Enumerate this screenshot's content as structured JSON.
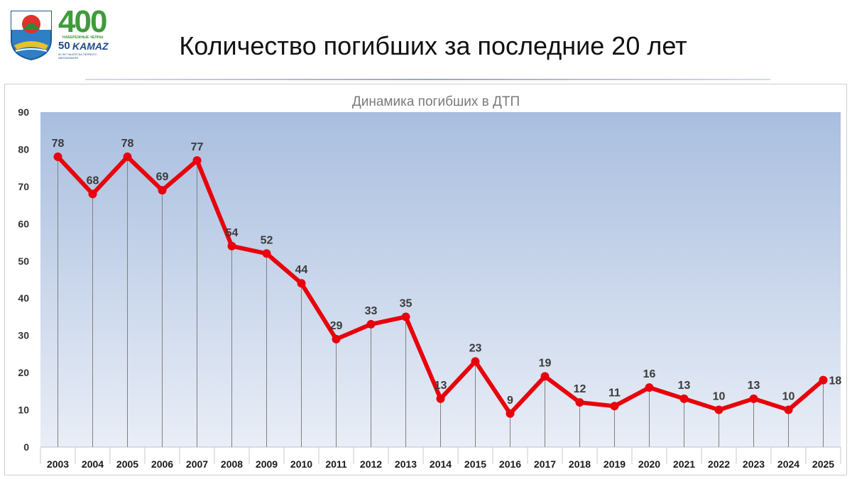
{
  "header": {
    "title": "Количество погибших за последние 20 лет",
    "logo_400": "400",
    "logo_city": "НАБЕРЕЖНЫЕ ЧЕЛНЫ",
    "logo_50": "50",
    "logo_kamaz": "KAMAZ",
    "logo_tagline": "50 ЛЕТ ВЫПУСКА ПЕРВОГО АВТОМОБИЛЯ"
  },
  "colors": {
    "line": "#e8000b",
    "plot_top": "#a9bedf",
    "plot_bottom": "#e9eef7",
    "drop_line": "#808080"
  },
  "chart_data": {
    "type": "line",
    "title": "Динамика погибших в ДТП",
    "categories": [
      "2003",
      "2004",
      "2005",
      "2006",
      "2007",
      "2008",
      "2009",
      "2010",
      "2011",
      "2012",
      "2013",
      "2014",
      "2015",
      "2016",
      "2017",
      "2018",
      "2019",
      "2020",
      "2021",
      "2022",
      "2023",
      "2024",
      "2025"
    ],
    "series": [
      {
        "values": [
          78,
          68,
          78,
          69,
          77,
          54,
          52,
          44,
          29,
          33,
          35,
          13,
          23,
          9,
          19,
          12,
          11,
          16,
          13,
          10,
          13,
          10,
          18
        ]
      }
    ],
    "ylim": [
      0,
      90
    ],
    "yticks": [
      0,
      10,
      20,
      30,
      40,
      50,
      60,
      70,
      80,
      90
    ],
    "data_labels": true,
    "drop_lines": true,
    "grid": false,
    "legend": "none"
  }
}
